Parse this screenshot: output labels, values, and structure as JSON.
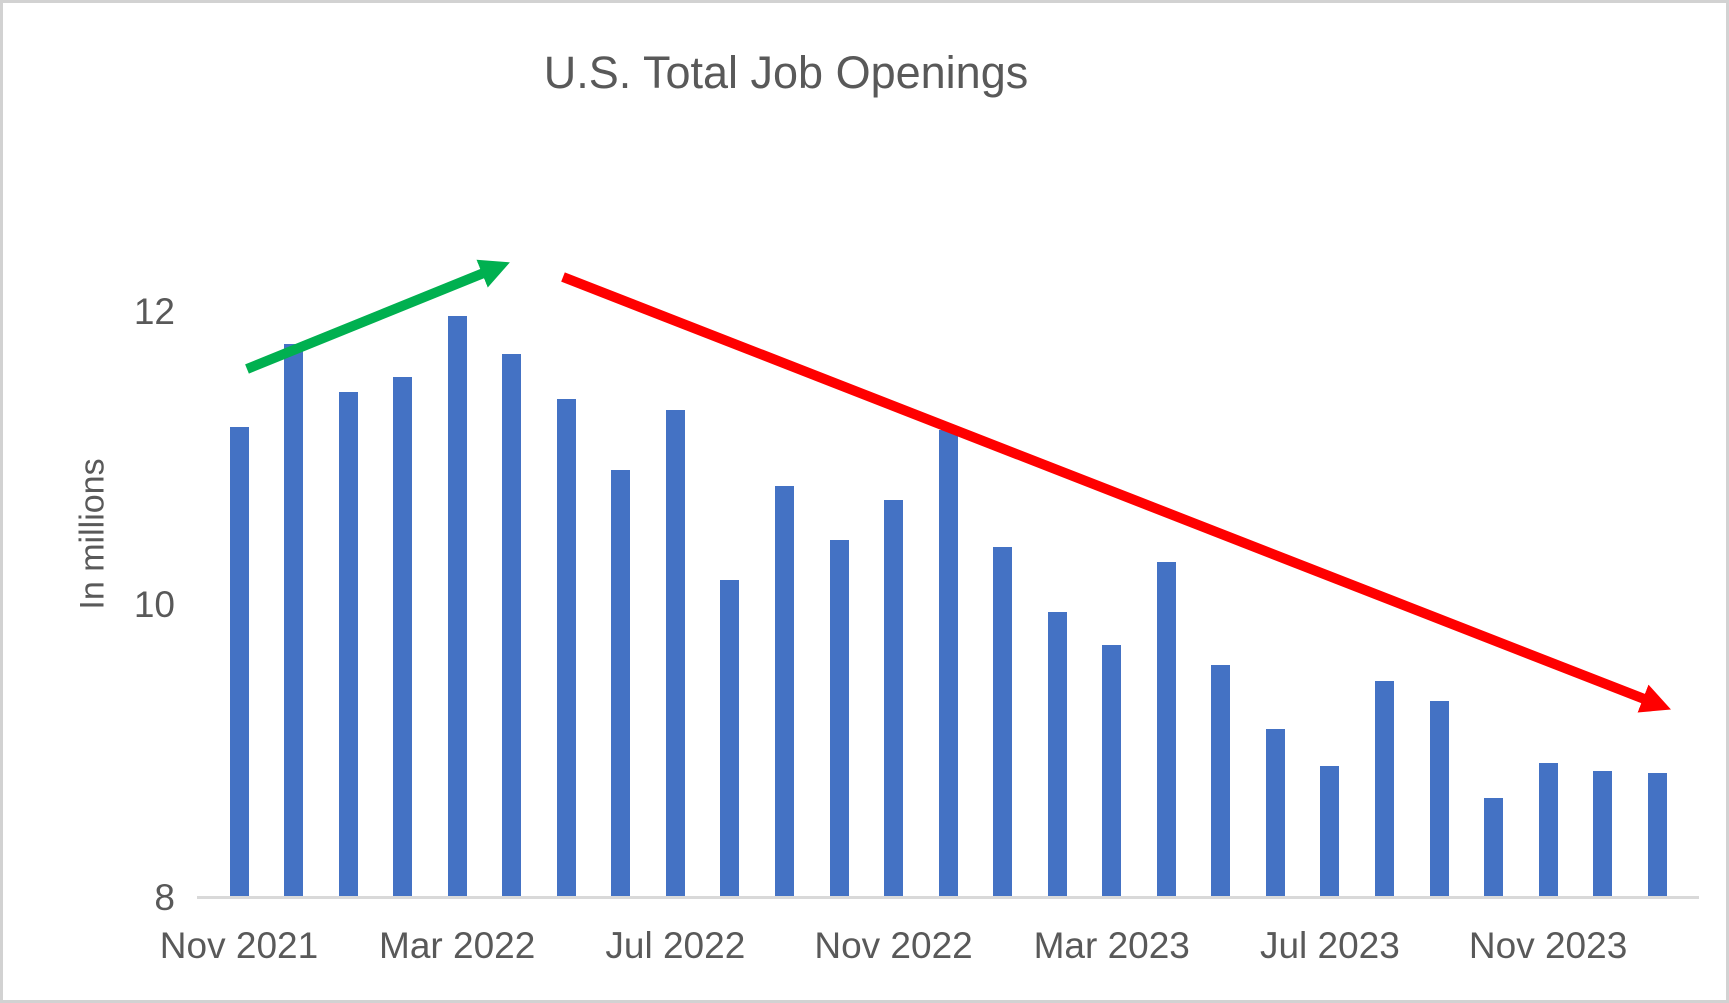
{
  "window": {
    "background_color": "#ffffff",
    "border_color": "#d2d2d2"
  },
  "chart_data": {
    "type": "bar",
    "title": "U.S. Total Job Openings",
    "xlabel": "",
    "ylabel": "In millions",
    "categories": [
      "Nov 2021",
      "Dec 2021",
      "Jan 2022",
      "Feb 2022",
      "Mar 2022",
      "Apr 2022",
      "May 2022",
      "Jun 2022",
      "Jul 2022",
      "Aug 2022",
      "Sep 2022",
      "Oct 2022",
      "Nov 2022",
      "Dec 2022",
      "Jan 2023",
      "Feb 2023",
      "Mar 2023",
      "Apr 2023",
      "May 2023",
      "Jun 2023",
      "Jul 2023",
      "Aug 2023",
      "Sep 2023",
      "Oct 2023",
      "Nov 2023",
      "Dec 2023",
      "Jan 2024"
    ],
    "values": [
      11.2,
      11.77,
      11.44,
      11.54,
      11.96,
      11.7,
      11.39,
      10.91,
      11.32,
      10.16,
      10.8,
      10.43,
      10.7,
      11.18,
      10.38,
      9.94,
      9.71,
      10.28,
      9.58,
      9.14,
      8.89,
      9.47,
      9.33,
      8.67,
      8.91,
      8.85,
      8.84
    ],
    "xtick_labels": [
      "Nov 2021",
      "Mar 2022",
      "Jul 2022",
      "Nov 2022",
      "Mar 2023",
      "Jul 2023",
      "Nov 2023"
    ],
    "xtick_indices": [
      0,
      4,
      8,
      12,
      16,
      20,
      24
    ],
    "yticks": [
      8,
      10,
      12
    ],
    "ylim": [
      8,
      13
    ],
    "grid": false,
    "legend": "none",
    "bar_color": "#4472C4",
    "text_color": "#595959",
    "axis_line_color": "#d9d9d9",
    "annotations": [
      {
        "name": "uptrend-arrow",
        "shape": "arrow",
        "color": "#00B050",
        "from": [
          244,
          366
        ],
        "to": [
          493,
          265
        ]
      },
      {
        "name": "downtrend-arrow",
        "shape": "arrow",
        "color": "#FF0000",
        "from": [
          560,
          274
        ],
        "to": [
          1654,
          701
        ]
      }
    ]
  }
}
